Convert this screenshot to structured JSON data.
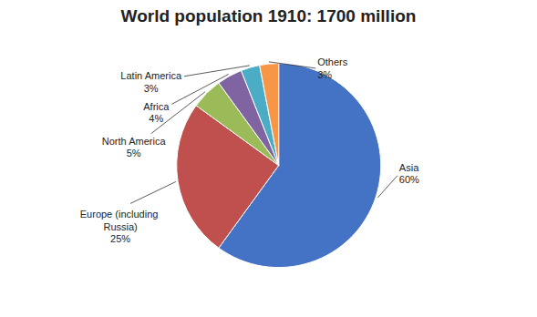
{
  "chart_data": {
    "type": "pie",
    "title": "World population 1910: 1700 million",
    "categories": [
      "Asia",
      "Europe (including\nRussia)",
      "North America",
      "Africa",
      "Latin America",
      "Others"
    ],
    "values": [
      60,
      25,
      5,
      4,
      3,
      3
    ],
    "value_labels": [
      "60%",
      "25%",
      "5%",
      "4%",
      "3%",
      "3%"
    ],
    "colors": [
      "#4472C4",
      "#C0504D",
      "#9BBB59",
      "#8064A2",
      "#4BACC6",
      "#F79646"
    ],
    "data_labels": true
  }
}
